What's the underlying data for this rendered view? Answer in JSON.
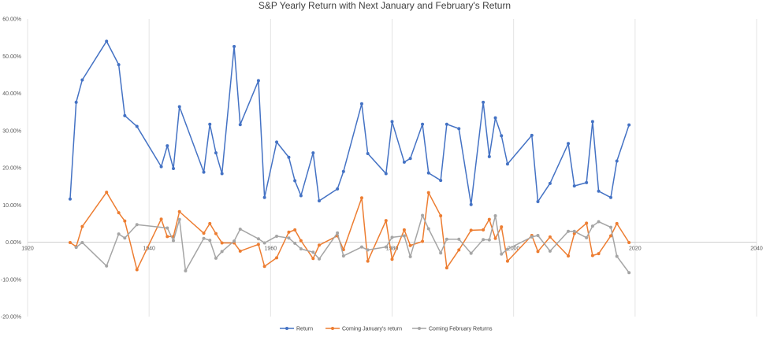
{
  "chart_data": {
    "type": "line",
    "title": "S&P Yearly Return with Next January and February's Return",
    "xlabel": "",
    "ylabel": "",
    "xlim": [
      1920,
      2040
    ],
    "ylim": [
      -0.2,
      0.6
    ],
    "x_ticks": [
      1920,
      1940,
      1960,
      1980,
      2000,
      2020,
      2040
    ],
    "x_tick_labels": [
      "1920",
      "1940",
      "1960",
      "1980",
      "2000",
      "2020",
      "2040"
    ],
    "y_ticks": [
      -0.2,
      -0.1,
      0.0,
      0.1,
      0.2,
      0.3,
      0.4,
      0.5,
      0.6
    ],
    "y_tick_labels": [
      "-20.00%",
      "-10.00%",
      "0.00%",
      "10.00%",
      "20.00%",
      "30.00%",
      "40.00%",
      "50.00%",
      "60.00%"
    ],
    "grid": {
      "vertical": true,
      "horizontal": false
    },
    "legend_position": "bottom",
    "series": [
      {
        "name": "Return",
        "color": "#4472c4",
        "points": [
          [
            1927,
            0.116
          ],
          [
            1928,
            0.376
          ],
          [
            1929,
            0.436
          ],
          [
            1933,
            0.54
          ],
          [
            1935,
            0.477
          ],
          [
            1936,
            0.34
          ],
          [
            1938,
            0.311
          ],
          [
            1942,
            0.203
          ],
          [
            1943,
            0.259
          ],
          [
            1944,
            0.198
          ],
          [
            1945,
            0.364
          ],
          [
            1949,
            0.188
          ],
          [
            1950,
            0.317
          ],
          [
            1951,
            0.24
          ],
          [
            1952,
            0.184
          ],
          [
            1954,
            0.526
          ],
          [
            1955,
            0.316
          ],
          [
            1958,
            0.434
          ],
          [
            1959,
            0.12
          ],
          [
            1961,
            0.269
          ],
          [
            1963,
            0.228
          ],
          [
            1964,
            0.165
          ],
          [
            1965,
            0.125
          ],
          [
            1967,
            0.24
          ],
          [
            1968,
            0.111
          ],
          [
            1971,
            0.143
          ],
          [
            1972,
            0.19
          ],
          [
            1975,
            0.372
          ],
          [
            1976,
            0.238
          ],
          [
            1979,
            0.184
          ],
          [
            1980,
            0.324
          ],
          [
            1982,
            0.215
          ],
          [
            1983,
            0.225
          ],
          [
            1985,
            0.317
          ],
          [
            1986,
            0.186
          ],
          [
            1988,
            0.166
          ],
          [
            1989,
            0.317
          ],
          [
            1991,
            0.305
          ],
          [
            1993,
            0.101
          ],
          [
            1995,
            0.376
          ],
          [
            1996,
            0.23
          ],
          [
            1997,
            0.334
          ],
          [
            1998,
            0.286
          ],
          [
            1999,
            0.21
          ],
          [
            2003,
            0.287
          ],
          [
            2004,
            0.109
          ],
          [
            2006,
            0.158
          ],
          [
            2009,
            0.265
          ],
          [
            2010,
            0.151
          ],
          [
            2012,
            0.16
          ],
          [
            2013,
            0.324
          ],
          [
            2014,
            0.137
          ],
          [
            2016,
            0.12
          ],
          [
            2017,
            0.218
          ],
          [
            2019,
            0.315
          ]
        ]
      },
      {
        "name": "Coming January's return",
        "color": "#ed7d31",
        "points": [
          [
            1927,
            -0.001
          ],
          [
            1928,
            -0.012
          ],
          [
            1929,
            0.042
          ],
          [
            1933,
            0.134
          ],
          [
            1935,
            0.079
          ],
          [
            1936,
            0.057
          ],
          [
            1938,
            -0.074
          ],
          [
            1942,
            0.062
          ],
          [
            1943,
            0.015
          ],
          [
            1944,
            0.015
          ],
          [
            1945,
            0.082
          ],
          [
            1949,
            0.024
          ],
          [
            1950,
            0.05
          ],
          [
            1951,
            0.023
          ],
          [
            1952,
            -0.002
          ],
          [
            1954,
            -0.002
          ],
          [
            1955,
            -0.024
          ],
          [
            1958,
            -0.006
          ],
          [
            1959,
            -0.065
          ],
          [
            1961,
            -0.042
          ],
          [
            1963,
            0.027
          ],
          [
            1964,
            0.033
          ],
          [
            1965,
            0.004
          ],
          [
            1967,
            -0.044
          ],
          [
            1968,
            -0.008
          ],
          [
            1971,
            0.017
          ],
          [
            1972,
            -0.02
          ],
          [
            1975,
            0.119
          ],
          [
            1976,
            -0.051
          ],
          [
            1979,
            0.058
          ],
          [
            1980,
            -0.046
          ],
          [
            1982,
            0.033
          ],
          [
            1983,
            -0.009
          ],
          [
            1985,
            0.002
          ],
          [
            1986,
            0.133
          ],
          [
            1988,
            0.071
          ],
          [
            1989,
            -0.069
          ],
          [
            1991,
            -0.021
          ],
          [
            1993,
            0.032
          ],
          [
            1995,
            0.033
          ],
          [
            1996,
            0.061
          ],
          [
            1997,
            0.01
          ],
          [
            1998,
            0.041
          ],
          [
            1999,
            -0.051
          ],
          [
            2003,
            0.018
          ],
          [
            2004,
            -0.025
          ],
          [
            2006,
            0.014
          ],
          [
            2009,
            -0.037
          ],
          [
            2010,
            0.023
          ],
          [
            2012,
            0.051
          ],
          [
            2013,
            -0.036
          ],
          [
            2014,
            -0.031
          ],
          [
            2016,
            0.017
          ],
          [
            2017,
            0.05
          ],
          [
            2019,
            -0.001
          ]
        ]
      },
      {
        "name": "Coming February Returns",
        "color": "#a5a5a5",
        "points": [
          [
            1928,
            -0.014
          ],
          [
            1929,
            -0.001
          ],
          [
            1933,
            -0.064
          ],
          [
            1935,
            0.022
          ],
          [
            1936,
            0.011
          ],
          [
            1938,
            0.047
          ],
          [
            1943,
            0.038
          ],
          [
            1944,
            0.004
          ],
          [
            1945,
            0.061
          ],
          [
            1946,
            -0.077
          ],
          [
            1949,
            0.01
          ],
          [
            1950,
            0.005
          ],
          [
            1951,
            -0.043
          ],
          [
            1952,
            -0.025
          ],
          [
            1954,
            0.003
          ],
          [
            1955,
            0.035
          ],
          [
            1958,
            0.009
          ],
          [
            1959,
            -0.002
          ],
          [
            1961,
            0.016
          ],
          [
            1963,
            0.011
          ],
          [
            1964,
            -0.003
          ],
          [
            1965,
            -0.018
          ],
          [
            1967,
            -0.027
          ],
          [
            1968,
            -0.045
          ],
          [
            1971,
            0.025
          ],
          [
            1972,
            -0.037
          ],
          [
            1975,
            -0.013
          ],
          [
            1976,
            -0.021
          ],
          [
            1979,
            -0.013
          ],
          [
            1980,
            0.013
          ],
          [
            1982,
            0.017
          ],
          [
            1983,
            -0.039
          ],
          [
            1985,
            0.072
          ],
          [
            1986,
            0.036
          ],
          [
            1988,
            -0.029
          ],
          [
            1989,
            0.008
          ],
          [
            1991,
            0.008
          ],
          [
            1993,
            -0.03
          ],
          [
            1995,
            0.007
          ],
          [
            1996,
            0.006
          ],
          [
            1997,
            0.071
          ],
          [
            1998,
            -0.032
          ],
          [
            1999,
            -0.019
          ],
          [
            2003,
            0.014
          ],
          [
            2004,
            0.018
          ],
          [
            2006,
            -0.024
          ],
          [
            2009,
            0.029
          ],
          [
            2010,
            0.029
          ],
          [
            2012,
            0.012
          ],
          [
            2013,
            0.043
          ],
          [
            2014,
            0.055
          ],
          [
            2016,
            0.04
          ],
          [
            2017,
            -0.038
          ],
          [
            2019,
            -0.082
          ]
        ]
      }
    ]
  }
}
